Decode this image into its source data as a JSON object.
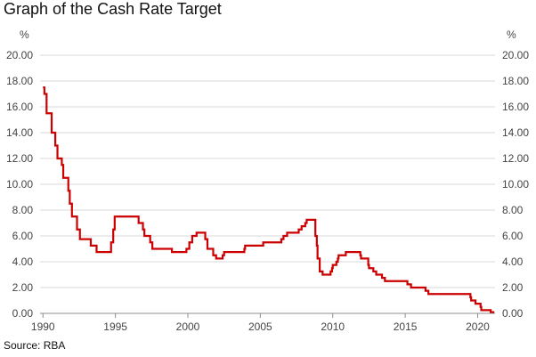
{
  "title": "Graph of the Cash Rate Target",
  "source": "Source: RBA",
  "colors": {
    "line": "#cc0000",
    "grid": "#d9d9d9",
    "axis": "#8c8c8c"
  },
  "chart_data": {
    "type": "line",
    "title": "Graph of the Cash Rate Target",
    "ylabel_left": "%",
    "ylabel_right": "%",
    "ylim": [
      0,
      20
    ],
    "yticks": [
      "0.00",
      "2.00",
      "4.00",
      "6.00",
      "8.00",
      "10.00",
      "12.00",
      "14.00",
      "16.00",
      "18.00",
      "20.00"
    ],
    "xlim": [
      1989.8,
      2021.2
    ],
    "xticks": [
      "1990",
      "1995",
      "2000",
      "2005",
      "2010",
      "2015",
      "2020"
    ],
    "grid": true,
    "step": true,
    "series": [
      {
        "points": [
          [
            1990.0,
            17.5
          ],
          [
            1990.1,
            17.0
          ],
          [
            1990.25,
            15.5
          ],
          [
            1990.5,
            15.5
          ],
          [
            1990.6,
            14.0
          ],
          [
            1990.7,
            14.0
          ],
          [
            1990.85,
            13.0
          ],
          [
            1991.0,
            12.0
          ],
          [
            1991.25,
            12.0
          ],
          [
            1991.3,
            11.5
          ],
          [
            1991.4,
            10.5
          ],
          [
            1991.65,
            10.5
          ],
          [
            1991.75,
            9.5
          ],
          [
            1991.85,
            8.5
          ],
          [
            1992.0,
            7.5
          ],
          [
            1992.3,
            7.5
          ],
          [
            1992.35,
            6.5
          ],
          [
            1992.55,
            5.75
          ],
          [
            1993.15,
            5.75
          ],
          [
            1993.3,
            5.25
          ],
          [
            1993.6,
            5.25
          ],
          [
            1993.7,
            4.75
          ],
          [
            1994.65,
            4.75
          ],
          [
            1994.7,
            5.5
          ],
          [
            1994.85,
            6.5
          ],
          [
            1994.95,
            7.5
          ],
          [
            1996.55,
            7.5
          ],
          [
            1996.6,
            7.0
          ],
          [
            1996.85,
            7.0
          ],
          [
            1996.9,
            6.5
          ],
          [
            1997.0,
            6.0
          ],
          [
            1997.35,
            6.0
          ],
          [
            1997.4,
            5.5
          ],
          [
            1997.55,
            5.0
          ],
          [
            1998.85,
            5.0
          ],
          [
            1998.9,
            4.75
          ],
          [
            1999.85,
            4.75
          ],
          [
            1999.9,
            5.0
          ],
          [
            2000.1,
            5.5
          ],
          [
            2000.3,
            6.0
          ],
          [
            2000.6,
            6.25
          ],
          [
            2001.1,
            6.25
          ],
          [
            2001.2,
            5.75
          ],
          [
            2001.35,
            5.0
          ],
          [
            2001.7,
            5.0
          ],
          [
            2001.75,
            4.5
          ],
          [
            2001.95,
            4.25
          ],
          [
            2002.35,
            4.25
          ],
          [
            2002.4,
            4.5
          ],
          [
            2002.5,
            4.75
          ],
          [
            2003.85,
            4.75
          ],
          [
            2003.9,
            5.0
          ],
          [
            2003.95,
            5.25
          ],
          [
            2005.15,
            5.25
          ],
          [
            2005.2,
            5.5
          ],
          [
            2006.4,
            5.5
          ],
          [
            2006.45,
            5.75
          ],
          [
            2006.6,
            6.0
          ],
          [
            2006.85,
            6.25
          ],
          [
            2007.6,
            6.25
          ],
          [
            2007.65,
            6.5
          ],
          [
            2007.85,
            6.75
          ],
          [
            2008.1,
            7.0
          ],
          [
            2008.2,
            7.25
          ],
          [
            2008.75,
            7.25
          ],
          [
            2008.8,
            6.0
          ],
          [
            2008.9,
            5.25
          ],
          [
            2008.95,
            4.25
          ],
          [
            2009.1,
            3.25
          ],
          [
            2009.3,
            3.0
          ],
          [
            2009.75,
            3.0
          ],
          [
            2009.85,
            3.25
          ],
          [
            2009.95,
            3.5
          ],
          [
            2010.0,
            3.75
          ],
          [
            2010.25,
            4.0
          ],
          [
            2010.35,
            4.25
          ],
          [
            2010.4,
            4.5
          ],
          [
            2010.85,
            4.5
          ],
          [
            2010.9,
            4.75
          ],
          [
            2011.85,
            4.75
          ],
          [
            2011.9,
            4.5
          ],
          [
            2011.95,
            4.25
          ],
          [
            2012.4,
            4.25
          ],
          [
            2012.45,
            3.75
          ],
          [
            2012.5,
            3.5
          ],
          [
            2012.75,
            3.5
          ],
          [
            2012.8,
            3.25
          ],
          [
            2013.0,
            3.0
          ],
          [
            2013.35,
            3.0
          ],
          [
            2013.4,
            2.75
          ],
          [
            2013.6,
            2.5
          ],
          [
            2015.1,
            2.5
          ],
          [
            2015.15,
            2.25
          ],
          [
            2015.4,
            2.0
          ],
          [
            2016.35,
            2.0
          ],
          [
            2016.4,
            1.75
          ],
          [
            2016.6,
            1.5
          ],
          [
            2019.45,
            1.5
          ],
          [
            2019.5,
            1.25
          ],
          [
            2019.55,
            1.0
          ],
          [
            2019.8,
            1.0
          ],
          [
            2019.85,
            0.75
          ],
          [
            2020.2,
            0.5
          ],
          [
            2020.25,
            0.25
          ],
          [
            2020.85,
            0.25
          ],
          [
            2020.9,
            0.1
          ],
          [
            2021.15,
            0.1
          ]
        ]
      }
    ]
  }
}
